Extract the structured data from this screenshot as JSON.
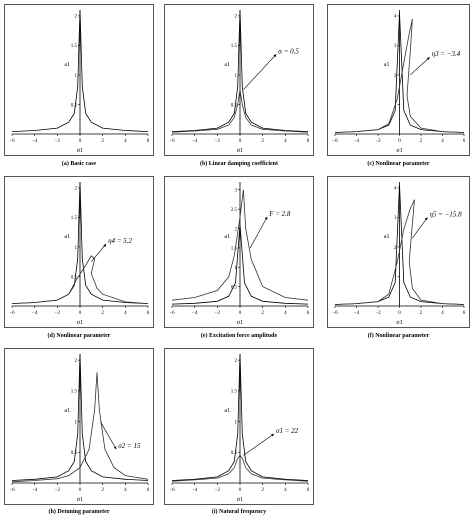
{
  "chart_data": [
    {
      "id": "a",
      "type": "line",
      "caption": "(a) Basic case",
      "xlabel": "σ1",
      "ylabel": "a1",
      "xlim": [
        -6,
        6
      ],
      "ylim": [
        0,
        2.1
      ],
      "xticks": [
        -6,
        -4,
        -2,
        0,
        2,
        4,
        6
      ],
      "yticks": [
        0.5,
        1,
        1.5,
        2
      ],
      "series": [
        {
          "values": [
            [
              -6,
              0.04
            ],
            [
              -4,
              0.06
            ],
            [
              -2,
              0.1
            ],
            [
              -1,
              0.2
            ],
            [
              -0.5,
              0.35
            ],
            [
              -0.2,
              0.8
            ],
            [
              0,
              2.1
            ],
            [
              0.2,
              0.8
            ],
            [
              0.5,
              0.35
            ],
            [
              1,
              0.2
            ],
            [
              2,
              0.1
            ],
            [
              4,
              0.06
            ],
            [
              6,
              0.04
            ]
          ]
        }
      ],
      "annotations": []
    },
    {
      "id": "b",
      "type": "line",
      "caption": "(b) Linear damping coefficient",
      "xlabel": "σ1",
      "ylabel": "a1",
      "xlim": [
        -6,
        6
      ],
      "ylim": [
        0,
        2.1
      ],
      "xticks": [
        -6,
        -4,
        -2,
        0,
        2,
        4,
        6
      ],
      "yticks": [
        0.5,
        1,
        1.5,
        2
      ],
      "series": [
        {
          "values": [
            [
              -6,
              0.04
            ],
            [
              -4,
              0.06
            ],
            [
              -2,
              0.1
            ],
            [
              -1,
              0.2
            ],
            [
              -0.5,
              0.35
            ],
            [
              -0.2,
              0.8
            ],
            [
              0,
              2.1
            ],
            [
              0.2,
              0.8
            ],
            [
              0.5,
              0.35
            ],
            [
              1,
              0.2
            ],
            [
              2,
              0.1
            ],
            [
              4,
              0.06
            ],
            [
              6,
              0.04
            ]
          ]
        },
        {
          "values": [
            [
              -6,
              0.03
            ],
            [
              -4,
              0.05
            ],
            [
              -2,
              0.08
            ],
            [
              -1,
              0.15
            ],
            [
              -0.5,
              0.28
            ],
            [
              -0.2,
              0.5
            ],
            [
              0,
              0.75
            ],
            [
              0.2,
              0.5
            ],
            [
              0.5,
              0.28
            ],
            [
              1,
              0.15
            ],
            [
              2,
              0.08
            ],
            [
              4,
              0.05
            ],
            [
              6,
              0.03
            ]
          ]
        }
      ],
      "annotations": [
        {
          "text": "α = 0.5",
          "at": [
            3.2,
            1.35
          ],
          "arrow_to": [
            0.3,
            0.75
          ]
        }
      ]
    },
    {
      "id": "c",
      "type": "line",
      "caption": "(c) Nonlinear parameter",
      "xlabel": "σ1",
      "ylabel": "a1",
      "xlim": [
        -6,
        6
      ],
      "ylim": [
        0,
        4.2
      ],
      "xticks": [
        -6,
        -4,
        -2,
        0,
        2,
        4,
        6
      ],
      "yticks": [
        1,
        2,
        3,
        4
      ],
      "series": [
        {
          "values": [
            [
              -6,
              0.05
            ],
            [
              -4,
              0.08
            ],
            [
              -2,
              0.15
            ],
            [
              -1,
              0.3
            ],
            [
              -0.4,
              0.8
            ],
            [
              0,
              4.1
            ],
            [
              0.4,
              0.8
            ],
            [
              1,
              0.3
            ],
            [
              2,
              0.15
            ],
            [
              4,
              0.08
            ],
            [
              6,
              0.05
            ]
          ]
        },
        {
          "values": [
            [
              -6,
              0.05
            ],
            [
              -4,
              0.08
            ],
            [
              -2,
              0.15
            ],
            [
              -1,
              0.35
            ],
            [
              -0.2,
              1.2
            ],
            [
              0.3,
              2.2
            ],
            [
              0.9,
              3.4
            ],
            [
              1.2,
              3.9
            ],
            [
              1.0,
              2.8
            ],
            [
              0.7,
              1.3
            ],
            [
              1,
              0.6
            ],
            [
              2,
              0.2
            ],
            [
              4,
              0.08
            ],
            [
              6,
              0.05
            ]
          ]
        }
      ],
      "annotations": [
        {
          "text": "η3 = −3.4",
          "at": [
            2.8,
            2.6
          ],
          "arrow_to": [
            1.0,
            2.0
          ]
        }
      ]
    },
    {
      "id": "d",
      "type": "line",
      "caption": "(d) Nonlinear parameter",
      "xlabel": "σ1",
      "ylabel": "a1",
      "xlim": [
        -6,
        6
      ],
      "ylim": [
        0,
        2.1
      ],
      "xticks": [
        -6,
        -4,
        -2,
        0,
        2,
        4,
        6
      ],
      "yticks": [
        0.5,
        1,
        1.5,
        2
      ],
      "series": [
        {
          "values": [
            [
              -6,
              0.04
            ],
            [
              -4,
              0.06
            ],
            [
              -2,
              0.1
            ],
            [
              -1,
              0.2
            ],
            [
              -0.5,
              0.35
            ],
            [
              -0.2,
              0.8
            ],
            [
              0,
              2.1
            ],
            [
              0.2,
              0.8
            ],
            [
              0.5,
              0.35
            ],
            [
              1,
              0.2
            ],
            [
              2,
              0.1
            ],
            [
              4,
              0.06
            ],
            [
              6,
              0.04
            ]
          ]
        },
        {
          "values": [
            [
              -6,
              0.04
            ],
            [
              -4,
              0.06
            ],
            [
              -2,
              0.1
            ],
            [
              -1,
              0.2
            ],
            [
              -0.3,
              0.45
            ],
            [
              0.2,
              0.6
            ],
            [
              0.6,
              0.72
            ],
            [
              1.0,
              0.85
            ],
            [
              1.3,
              0.8
            ],
            [
              1.0,
              0.55
            ],
            [
              1.5,
              0.3
            ],
            [
              2,
              0.2
            ],
            [
              4,
              0.07
            ],
            [
              6,
              0.04
            ]
          ]
        }
      ],
      "annotations": [
        {
          "text": "η4 = 5.2",
          "at": [
            2.3,
            1.05
          ],
          "arrow_to": [
            1.0,
            0.75
          ]
        }
      ]
    },
    {
      "id": "e",
      "type": "line",
      "caption": "(e) Excitation force amplitude",
      "xlabel": "σ1",
      "ylabel": "a1",
      "xlim": [
        -6,
        6
      ],
      "ylim": [
        0,
        3.2
      ],
      "xticks": [
        -6,
        -4,
        -2,
        0,
        2,
        4,
        6
      ],
      "yticks": [
        0.5,
        1,
        1.5,
        2,
        2.5,
        3
      ],
      "series": [
        {
          "values": [
            [
              -6,
              0.05
            ],
            [
              -4,
              0.07
            ],
            [
              -2,
              0.12
            ],
            [
              -1,
              0.25
            ],
            [
              -0.4,
              0.6
            ],
            [
              0,
              2.1
            ],
            [
              0.4,
              0.6
            ],
            [
              1,
              0.25
            ],
            [
              2,
              0.12
            ],
            [
              4,
              0.07
            ],
            [
              6,
              0.05
            ]
          ]
        },
        {
          "values": [
            [
              -6,
              0.15
            ],
            [
              -4,
              0.22
            ],
            [
              -2,
              0.4
            ],
            [
              -1,
              0.75
            ],
            [
              -0.5,
              1.3
            ],
            [
              0,
              2.3
            ],
            [
              0.3,
              3.0
            ],
            [
              0.5,
              2.0
            ],
            [
              1,
              1.2
            ],
            [
              2,
              0.5
            ],
            [
              4,
              0.22
            ],
            [
              6,
              0.15
            ]
          ]
        }
      ],
      "annotations": [
        {
          "text": "F = 2.8",
          "at": [
            2.4,
            2.3
          ],
          "arrow_to": [
            0.9,
            1.5
          ]
        }
      ]
    },
    {
      "id": "f",
      "type": "line",
      "caption": "(f) Nonlinear parameter",
      "xlabel": "σ1",
      "ylabel": "a1",
      "xlim": [
        -6,
        6
      ],
      "ylim": [
        0,
        4.2
      ],
      "xticks": [
        -6,
        -4,
        -2,
        0,
        2,
        4,
        6
      ],
      "yticks": [
        1,
        2,
        3,
        4
      ],
      "series": [
        {
          "values": [
            [
              -6,
              0.05
            ],
            [
              -4,
              0.08
            ],
            [
              -2,
              0.15
            ],
            [
              -1,
              0.3
            ],
            [
              -0.4,
              0.8
            ],
            [
              0,
              4.1
            ],
            [
              0.4,
              0.8
            ],
            [
              1,
              0.3
            ],
            [
              2,
              0.15
            ],
            [
              4,
              0.08
            ],
            [
              6,
              0.05
            ]
          ]
        },
        {
          "values": [
            [
              -6,
              0.05
            ],
            [
              -4,
              0.08
            ],
            [
              -2,
              0.15
            ],
            [
              -1,
              0.4
            ],
            [
              -0.2,
              1.5
            ],
            [
              0.4,
              2.6
            ],
            [
              1.0,
              3.3
            ],
            [
              1.4,
              3.6
            ],
            [
              1.2,
              2.8
            ],
            [
              0.9,
              1.5
            ],
            [
              1.2,
              0.6
            ],
            [
              2,
              0.2
            ],
            [
              4,
              0.08
            ],
            [
              6,
              0.05
            ]
          ]
        }
      ],
      "annotations": [
        {
          "text": "η5 = −15.8",
          "at": [
            2.6,
            3.0
          ],
          "arrow_to": [
            1.2,
            2.3
          ]
        }
      ]
    },
    {
      "id": "h",
      "type": "line",
      "caption": "(h) Detuning parameter",
      "xlabel": "σ1",
      "ylabel": "a1",
      "xlim": [
        -6,
        6
      ],
      "ylim": [
        0,
        2.1
      ],
      "xticks": [
        -6,
        -4,
        -2,
        0,
        2,
        4,
        6
      ],
      "yticks": [
        0.5,
        1,
        1.5,
        2
      ],
      "series": [
        {
          "values": [
            [
              -6,
              0.04
            ],
            [
              -4,
              0.06
            ],
            [
              -2,
              0.1
            ],
            [
              -1,
              0.2
            ],
            [
              -0.5,
              0.35
            ],
            [
              -0.2,
              0.8
            ],
            [
              0,
              2.1
            ],
            [
              0.2,
              0.8
            ],
            [
              0.5,
              0.35
            ],
            [
              1,
              0.2
            ],
            [
              2,
              0.1
            ],
            [
              4,
              0.06
            ],
            [
              6,
              0.04
            ]
          ]
        },
        {
          "values": [
            [
              -6,
              0.02
            ],
            [
              -4,
              0.04
            ],
            [
              -2,
              0.07
            ],
            [
              -1,
              0.12
            ],
            [
              0,
              0.25
            ],
            [
              0.8,
              0.55
            ],
            [
              1.3,
              1.2
            ],
            [
              1.5,
              1.8
            ],
            [
              1.7,
              1.2
            ],
            [
              2.2,
              0.55
            ],
            [
              3,
              0.25
            ],
            [
              4,
              0.12
            ],
            [
              6,
              0.06
            ]
          ]
        }
      ],
      "annotations": [
        {
          "text": "σ2 = 15",
          "at": [
            3.2,
            0.55
          ],
          "arrow_to": [
            1.8,
            1.0
          ]
        }
      ]
    },
    {
      "id": "i",
      "type": "line",
      "caption": "(i) Natural frequency",
      "xlabel": "σ1",
      "ylabel": "a1",
      "xlim": [
        -6,
        6
      ],
      "ylim": [
        0,
        2.1
      ],
      "xticks": [
        -6,
        -4,
        -2,
        0,
        2,
        4,
        6
      ],
      "yticks": [
        0.5,
        1,
        1.5,
        2
      ],
      "series": [
        {
          "values": [
            [
              -6,
              0.04
            ],
            [
              -4,
              0.06
            ],
            [
              -2,
              0.1
            ],
            [
              -1,
              0.2
            ],
            [
              -0.5,
              0.35
            ],
            [
              -0.2,
              0.8
            ],
            [
              0,
              2.1
            ],
            [
              0.2,
              0.8
            ],
            [
              0.5,
              0.35
            ],
            [
              1,
              0.2
            ],
            [
              2,
              0.1
            ],
            [
              4,
              0.06
            ],
            [
              6,
              0.04
            ]
          ]
        },
        {
          "values": [
            [
              -6,
              0.03
            ],
            [
              -4,
              0.05
            ],
            [
              -2,
              0.08
            ],
            [
              -1,
              0.15
            ],
            [
              -0.5,
              0.25
            ],
            [
              -0.2,
              0.4
            ],
            [
              0,
              0.45
            ],
            [
              0.2,
              0.4
            ],
            [
              0.5,
              0.25
            ],
            [
              1,
              0.15
            ],
            [
              2,
              0.08
            ],
            [
              4,
              0.05
            ],
            [
              6,
              0.03
            ]
          ]
        }
      ],
      "annotations": [
        {
          "text": "σ1 = 22",
          "at": [
            3.0,
            0.8
          ],
          "arrow_to": [
            0.3,
            0.45
          ]
        }
      ]
    }
  ]
}
